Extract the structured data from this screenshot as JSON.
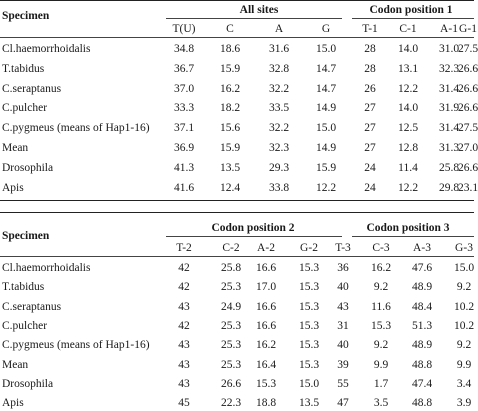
{
  "table1": {
    "specimen_header": "Specimen",
    "group_headers": [
      "All sites",
      "Codon position 1"
    ],
    "columns": [
      "T(U)",
      "C",
      "A",
      "G",
      "T-1",
      "C-1",
      "A-1",
      "G-1"
    ],
    "rows": [
      {
        "specimen": "Cl.haemorrhoidalis",
        "values": [
          "34.8",
          "18.6",
          "31.6",
          "15.0",
          "28",
          "14.0",
          "31.0",
          "27.5"
        ]
      },
      {
        "specimen": "T.tabidus",
        "values": [
          "36.7",
          "15.9",
          "32.8",
          "14.7",
          "28",
          "13.1",
          "32.3",
          "26.6"
        ]
      },
      {
        "specimen": "C.seraptanus",
        "values": [
          "37.0",
          "16.2",
          "32.2",
          "14.7",
          "26",
          "12.2",
          "31.4",
          "26.6"
        ]
      },
      {
        "specimen": "C.pulcher",
        "values": [
          "33.3",
          "18.2",
          "33.5",
          "14.9",
          "27",
          "14.0",
          "31.9",
          "26.6"
        ]
      },
      {
        "specimen": "C.pygmeus (means of Hap1-16)",
        "values": [
          "37.1",
          "15.6",
          "32.2",
          "15.0",
          "27",
          "12.5",
          "31.4",
          "27.5"
        ]
      },
      {
        "specimen": "Mean",
        "values": [
          "36.9",
          "15.9",
          "32.3",
          "14.9",
          "27",
          "12.8",
          "31.3",
          "27.0"
        ]
      },
      {
        "specimen": "Drosophila",
        "values": [
          "41.3",
          "13.5",
          "29.3",
          "15.9",
          "24",
          "11.4",
          "25.8",
          "26.6"
        ]
      },
      {
        "specimen": "Apis",
        "values": [
          "41.6",
          "12.4",
          "33.8",
          "12.2",
          "24",
          "12.2",
          "29.8",
          "23.1"
        ]
      }
    ]
  },
  "table2": {
    "specimen_header": "Specimen",
    "group_headers": [
      "Codon position 2",
      "Codon position 3"
    ],
    "columns": [
      "T-2",
      "C-2",
      "A-2",
      "G-2",
      "T-3",
      "C-3",
      "A-3",
      "G-3"
    ],
    "rows": [
      {
        "specimen": "Cl.haemorrhoidalis",
        "values": [
          "42",
          "25.8",
          "16.6",
          "15.3",
          "36",
          "16.2",
          "47.6",
          "15.0"
        ]
      },
      {
        "specimen": "T.tabidus",
        "values": [
          "42",
          "25.3",
          "17.0",
          "15.3",
          "40",
          "9.2",
          "48.9",
          "9.2"
        ]
      },
      {
        "specimen": "C.seraptanus",
        "values": [
          "43",
          "24.9",
          "16.6",
          "15.3",
          "43",
          "11.6",
          "48.4",
          "10.2"
        ]
      },
      {
        "specimen": "C.pulcher",
        "values": [
          "42",
          "25.3",
          "16.6",
          "15.3",
          "31",
          "15.3",
          "51.3",
          "10.2"
        ]
      },
      {
        "specimen": "C.pygmeus (means of Hap1-16)",
        "values": [
          "43",
          "25.3",
          "16.2",
          "15.3",
          "40",
          "9.2",
          "48.9",
          "9.2"
        ]
      },
      {
        "specimen": "Mean",
        "values": [
          "43",
          "25.3",
          "16.4",
          "15.3",
          "39",
          "9.9",
          "48.8",
          "9.9"
        ]
      },
      {
        "specimen": "Drosophila",
        "values": [
          "43",
          "26.6",
          "15.3",
          "15.0",
          "55",
          "1.7",
          "47.4",
          "3.4"
        ]
      },
      {
        "specimen": "Apis",
        "values": [
          "45",
          "22.3",
          "18.8",
          "13.5",
          "47",
          "3.5",
          "48.8",
          "3.9"
        ]
      }
    ]
  }
}
